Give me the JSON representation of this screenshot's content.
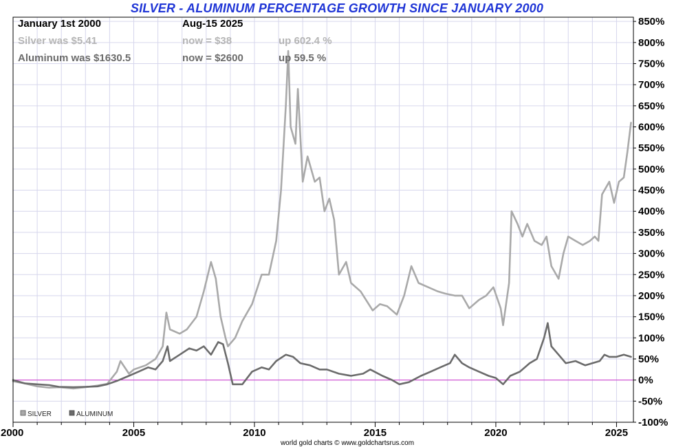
{
  "chart_data": {
    "type": "line",
    "title": "SILVER - ALUMINUM PERCENTAGE GROWTH SINCE JANUARY 2000",
    "annotations": {
      "start_label": "January 1st 2000",
      "end_label": "Aug-15  2025",
      "silver_was": "Silver was $5.41",
      "silver_now": "now = $38",
      "silver_up": "up 602.4 %",
      "aluminum_was": "Aluminum was $1630.5",
      "aluminum_now": "now = $2600",
      "aluminum_up": "up 59.5 %"
    },
    "xlabel": "",
    "ylabel": "",
    "x_ticks": [
      "2000",
      "2005",
      "2010",
      "2015",
      "2020",
      "2025"
    ],
    "y_ticks": [
      "850%",
      "800%",
      "750%",
      "700%",
      "650%",
      "600%",
      "550%",
      "500%",
      "450%",
      "400%",
      "350%",
      "300%",
      "250%",
      "200%",
      "150%",
      "100%",
      "50%",
      "0%",
      "-50%",
      "-100%"
    ],
    "xlim": [
      2000,
      2025.7
    ],
    "ylim": [
      -100,
      860
    ],
    "grid": true,
    "legend_position": "bottom-left",
    "credit": "world gold charts © www.goldchartsrus.com",
    "series": [
      {
        "name": "SILVER",
        "color": "#a9a9a9",
        "x": [
          2000.0,
          2000.5,
          2001.0,
          2001.5,
          2001.9,
          2002.5,
          2003.0,
          2003.5,
          2003.9,
          2004.3,
          2004.45,
          2004.8,
          2005.0,
          2005.5,
          2005.9,
          2006.2,
          2006.35,
          2006.5,
          2006.9,
          2007.2,
          2007.6,
          2007.9,
          2008.2,
          2008.4,
          2008.6,
          2008.8,
          2008.9,
          2009.2,
          2009.5,
          2009.9,
          2010.3,
          2010.6,
          2010.9,
          2011.1,
          2011.3,
          2011.4,
          2011.5,
          2011.7,
          2011.8,
          2012.0,
          2012.2,
          2012.5,
          2012.7,
          2012.9,
          2013.1,
          2013.3,
          2013.5,
          2013.8,
          2014.0,
          2014.4,
          2014.9,
          2015.2,
          2015.5,
          2015.9,
          2016.2,
          2016.5,
          2016.8,
          2017.2,
          2017.6,
          2017.9,
          2018.3,
          2018.6,
          2018.9,
          2019.3,
          2019.6,
          2019.9,
          2020.2,
          2020.3,
          2020.55,
          2020.65,
          2020.9,
          2021.1,
          2021.3,
          2021.6,
          2021.9,
          2022.1,
          2022.3,
          2022.6,
          2022.8,
          2023.0,
          2023.3,
          2023.6,
          2023.9,
          2024.1,
          2024.25,
          2024.4,
          2024.7,
          2024.9,
          2025.1,
          2025.3,
          2025.45,
          2025.6
        ],
        "values": [
          -3,
          -8,
          -15,
          -18,
          -17,
          -20,
          -17,
          -13,
          -9,
          20,
          45,
          15,
          25,
          35,
          50,
          80,
          160,
          120,
          110,
          120,
          150,
          210,
          280,
          240,
          150,
          100,
          80,
          100,
          140,
          180,
          250,
          250,
          330,
          450,
          650,
          780,
          600,
          560,
          690,
          470,
          530,
          470,
          480,
          400,
          430,
          380,
          250,
          280,
          230,
          210,
          165,
          180,
          175,
          155,
          200,
          270,
          230,
          220,
          210,
          205,
          200,
          200,
          170,
          190,
          200,
          220,
          170,
          130,
          230,
          400,
          370,
          340,
          370,
          330,
          320,
          340,
          270,
          240,
          300,
          340,
          330,
          320,
          330,
          340,
          330,
          440,
          470,
          420,
          470,
          480,
          540,
          610
        ]
      },
      {
        "name": "ALUMINUM",
        "color": "#6b6b6b",
        "x": [
          2000.0,
          2000.5,
          2001.0,
          2001.5,
          2001.9,
          2002.5,
          2003.0,
          2003.5,
          2003.9,
          2004.3,
          2004.8,
          2005.2,
          2005.6,
          2005.9,
          2006.2,
          2006.4,
          2006.5,
          2006.9,
          2007.3,
          2007.6,
          2007.9,
          2008.2,
          2008.5,
          2008.7,
          2008.9,
          2009.1,
          2009.5,
          2009.9,
          2010.3,
          2010.6,
          2010.9,
          2011.3,
          2011.6,
          2011.9,
          2012.3,
          2012.7,
          2013.0,
          2013.5,
          2014.0,
          2014.5,
          2014.8,
          2015.3,
          2015.7,
          2016.0,
          2016.4,
          2016.9,
          2017.3,
          2017.7,
          2018.1,
          2018.3,
          2018.6,
          2018.9,
          2019.3,
          2019.7,
          2020.0,
          2020.3,
          2020.6,
          2021.0,
          2021.4,
          2021.7,
          2022.0,
          2022.15,
          2022.3,
          2022.6,
          2022.9,
          2023.3,
          2023.7,
          2024.0,
          2024.3,
          2024.5,
          2024.7,
          2025.0,
          2025.3,
          2025.6
        ],
        "values": [
          0,
          -8,
          -10,
          -12,
          -16,
          -17,
          -16,
          -15,
          -10,
          -2,
          10,
          20,
          30,
          25,
          45,
          80,
          45,
          60,
          75,
          70,
          80,
          60,
          90,
          85,
          40,
          -10,
          -10,
          20,
          30,
          25,
          45,
          60,
          55,
          40,
          35,
          25,
          25,
          15,
          10,
          15,
          25,
          10,
          0,
          -10,
          -5,
          10,
          20,
          30,
          40,
          60,
          40,
          30,
          20,
          10,
          5,
          -10,
          10,
          20,
          40,
          50,
          100,
          135,
          80,
          60,
          40,
          45,
          35,
          40,
          45,
          60,
          55,
          55,
          60,
          55
        ]
      }
    ]
  }
}
